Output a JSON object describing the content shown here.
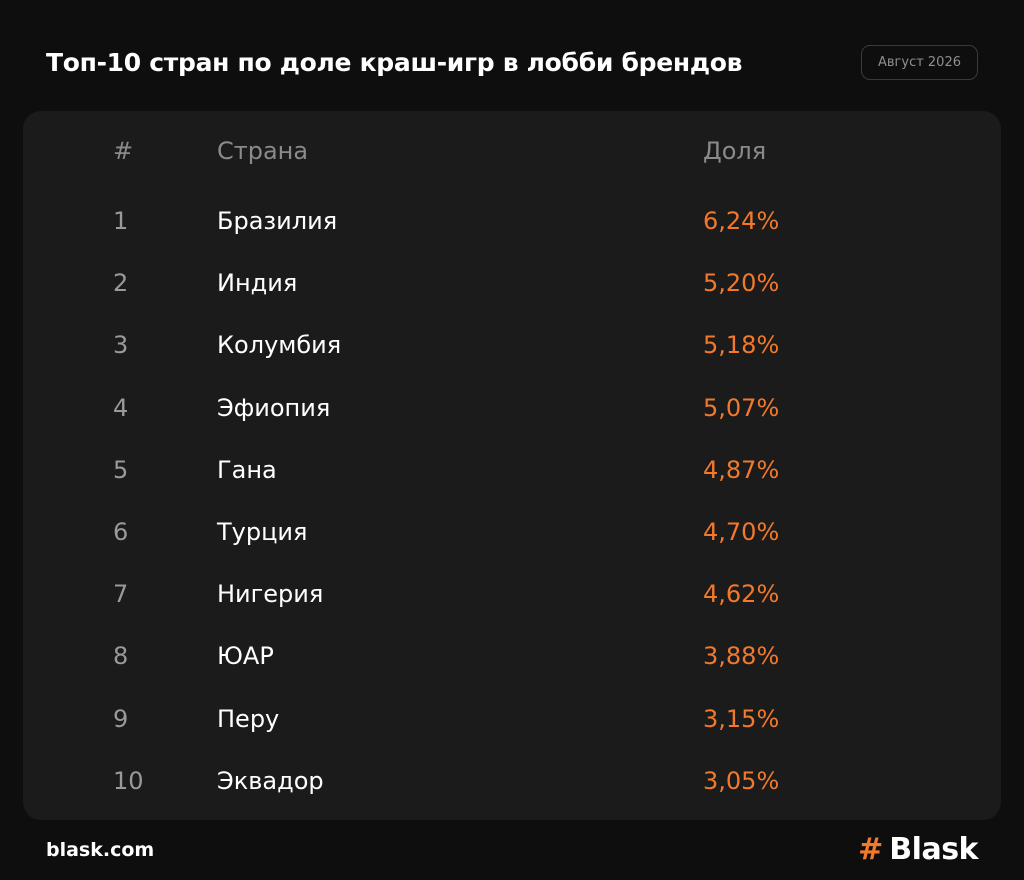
{
  "header": {
    "title": "Топ-10 стран по доле краш-игр в лобби брендов",
    "period": "Август 2026"
  },
  "footer": {
    "url": "blask.com",
    "brand": "Blask",
    "brand_glyph": "#"
  },
  "colors": {
    "accent": "#f2792b",
    "background": "#0e0e0e",
    "card": "#1b1b1b"
  },
  "chart_data": {
    "type": "table",
    "title": "Топ-10 стран по доле краш-игр в лобби брендов",
    "columns": [
      "#",
      "Страна",
      "Доля"
    ],
    "rows": [
      {
        "rank": "1",
        "country": "Бразилия",
        "share": "6,24%"
      },
      {
        "rank": "2",
        "country": "Индия",
        "share": "5,20%"
      },
      {
        "rank": "3",
        "country": "Колумбия",
        "share": "5,18%"
      },
      {
        "rank": "4",
        "country": "Эфиопия",
        "share": "5,07%"
      },
      {
        "rank": "5",
        "country": "Гана",
        "share": "4,87%"
      },
      {
        "rank": "6",
        "country": "Турция",
        "share": "4,70%"
      },
      {
        "rank": "7",
        "country": "Нигерия",
        "share": "4,62%"
      },
      {
        "rank": "8",
        "country": "ЮАР",
        "share": "3,88%"
      },
      {
        "rank": "9",
        "country": "Перу",
        "share": "3,15%"
      },
      {
        "rank": "10",
        "country": "Эквадор",
        "share": "3,05%"
      }
    ]
  }
}
